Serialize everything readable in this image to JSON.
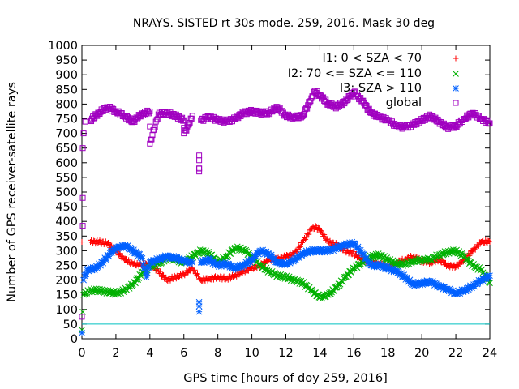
{
  "chart_data": {
    "type": "scatter",
    "title": "NRAYS. SISTED rt 30s mode. 259, 2016. Mask 30 deg",
    "xlabel": "GPS time [hours of doy 259, 2016]",
    "ylabel": "Number of GPS receiver-satellite rays",
    "xlim": [
      0,
      24
    ],
    "ylim": [
      0,
      1000
    ],
    "x_ticks": [
      "0",
      "2",
      "4",
      "6",
      "8",
      "10",
      "12",
      "14",
      "16",
      "18",
      "20",
      "22",
      "24"
    ],
    "y_ticks": [
      "0",
      "50",
      "100",
      "150",
      "200",
      "250",
      "300",
      "350",
      "400",
      "450",
      "500",
      "550",
      "600",
      "650",
      "700",
      "750",
      "800",
      "850",
      "900",
      "950",
      "1000"
    ],
    "reference_line": {
      "y": 50,
      "color": "#00c0c0"
    },
    "legend_position": "top-right",
    "series": [
      {
        "name": "I1: 0 < SZA < 70",
        "marker": "plus",
        "color": "#ff0000",
        "points": [
          [
            0,
            330
          ],
          [
            0.5,
            330
          ],
          [
            1,
            330
          ],
          [
            1.5,
            325
          ],
          [
            2,
            300
          ],
          [
            2.5,
            270
          ],
          [
            3,
            255
          ],
          [
            3.5,
            250
          ],
          [
            4,
            255
          ],
          [
            4.5,
            230
          ],
          [
            5,
            200
          ],
          [
            5.5,
            210
          ],
          [
            6,
            220
          ],
          [
            6.5,
            240
          ],
          [
            7,
            200
          ],
          [
            7.5,
            205
          ],
          [
            8,
            210
          ],
          [
            8.5,
            205
          ],
          [
            9,
            215
          ],
          [
            9.5,
            230
          ],
          [
            10,
            240
          ],
          [
            10.5,
            250
          ],
          [
            11,
            270
          ],
          [
            11.5,
            270
          ],
          [
            12,
            280
          ],
          [
            12.5,
            290
          ],
          [
            13,
            330
          ],
          [
            13.5,
            375
          ],
          [
            13.8,
            380
          ],
          [
            14,
            370
          ],
          [
            14.5,
            330
          ],
          [
            15,
            320
          ],
          [
            15.5,
            300
          ],
          [
            16,
            290
          ],
          [
            16.5,
            270
          ],
          [
            17,
            260
          ],
          [
            17.5,
            255
          ],
          [
            18,
            245
          ],
          [
            18.5,
            260
          ],
          [
            19,
            270
          ],
          [
            19.5,
            280
          ],
          [
            20,
            265
          ],
          [
            20.5,
            260
          ],
          [
            21,
            270
          ],
          [
            21.5,
            250
          ],
          [
            22,
            245
          ],
          [
            22.5,
            270
          ],
          [
            23,
            300
          ],
          [
            23.5,
            330
          ],
          [
            24,
            330
          ]
        ]
      },
      {
        "name": "I2: 70 <= SZA <= 110",
        "marker": "cross",
        "color": "#00b000",
        "points": [
          [
            0,
            30
          ],
          [
            0.1,
            150
          ],
          [
            0.5,
            165
          ],
          [
            1,
            165
          ],
          [
            1.5,
            160
          ],
          [
            2,
            155
          ],
          [
            2.5,
            165
          ],
          [
            3,
            185
          ],
          [
            3.5,
            220
          ],
          [
            4,
            245
          ],
          [
            4.5,
            255
          ],
          [
            5,
            275
          ],
          [
            5.5,
            270
          ],
          [
            6,
            260
          ],
          [
            6.5,
            280
          ],
          [
            7,
            300
          ],
          [
            7.5,
            290
          ],
          [
            8,
            260
          ],
          [
            8.5,
            280
          ],
          [
            9,
            310
          ],
          [
            9.5,
            305
          ],
          [
            10,
            280
          ],
          [
            10.5,
            250
          ],
          [
            11,
            230
          ],
          [
            11.5,
            215
          ],
          [
            12,
            210
          ],
          [
            12.5,
            200
          ],
          [
            13,
            190
          ],
          [
            13.5,
            165
          ],
          [
            14,
            140
          ],
          [
            14.5,
            150
          ],
          [
            15,
            175
          ],
          [
            15.5,
            210
          ],
          [
            16,
            240
          ],
          [
            16.5,
            260
          ],
          [
            17,
            280
          ],
          [
            17.5,
            285
          ],
          [
            18,
            270
          ],
          [
            18.5,
            255
          ],
          [
            19,
            255
          ],
          [
            19.5,
            265
          ],
          [
            20,
            270
          ],
          [
            20.5,
            270
          ],
          [
            21,
            285
          ],
          [
            21.5,
            295
          ],
          [
            22,
            300
          ],
          [
            22.5,
            280
          ],
          [
            23,
            250
          ],
          [
            23.5,
            235
          ],
          [
            24,
            190
          ]
        ]
      },
      {
        "name": "I3: SZA > 110",
        "marker": "star",
        "color": "#0060ff",
        "points": [
          [
            0,
            20
          ],
          [
            0.1,
            200
          ],
          [
            0.3,
            235
          ],
          [
            0.8,
            240
          ],
          [
            1.2,
            260
          ],
          [
            1.8,
            300
          ],
          [
            2.2,
            315
          ],
          [
            2.6,
            315
          ],
          [
            3,
            300
          ],
          [
            3.5,
            280
          ],
          [
            3.8,
            210
          ],
          [
            4,
            260
          ],
          [
            4.5,
            270
          ],
          [
            5,
            280
          ],
          [
            5.5,
            275
          ],
          [
            6,
            265
          ],
          [
            6.5,
            260
          ],
          [
            6.9,
            125
          ],
          [
            6.9,
            92
          ],
          [
            7,
            260
          ],
          [
            7.5,
            270
          ],
          [
            8,
            250
          ],
          [
            8.5,
            255
          ],
          [
            9,
            240
          ],
          [
            9.5,
            250
          ],
          [
            10,
            270
          ],
          [
            10.5,
            300
          ],
          [
            11,
            290
          ],
          [
            11.5,
            260
          ],
          [
            12,
            255
          ],
          [
            12.5,
            270
          ],
          [
            13,
            290
          ],
          [
            13.5,
            300
          ],
          [
            14,
            300
          ],
          [
            14.5,
            300
          ],
          [
            15,
            310
          ],
          [
            15.5,
            320
          ],
          [
            16,
            325
          ],
          [
            16.5,
            290
          ],
          [
            17,
            250
          ],
          [
            17.5,
            250
          ],
          [
            18,
            240
          ],
          [
            18.5,
            230
          ],
          [
            19,
            210
          ],
          [
            19.5,
            185
          ],
          [
            20,
            190
          ],
          [
            20.5,
            195
          ],
          [
            21,
            180
          ],
          [
            21.5,
            170
          ],
          [
            22,
            155
          ],
          [
            22.5,
            165
          ],
          [
            23,
            180
          ],
          [
            23.5,
            200
          ],
          [
            24,
            215
          ]
        ]
      },
      {
        "name": "global",
        "marker": "square",
        "color": "#a000c0",
        "points": [
          [
            0,
            75
          ],
          [
            0.05,
            385
          ],
          [
            0.05,
            480
          ],
          [
            0.05,
            650
          ],
          [
            0.1,
            700
          ],
          [
            0.2,
            740
          ],
          [
            0.5,
            745
          ],
          [
            1,
            770
          ],
          [
            1.5,
            790
          ],
          [
            2,
            775
          ],
          [
            2.5,
            760
          ],
          [
            3,
            740
          ],
          [
            3.5,
            765
          ],
          [
            4,
            775
          ],
          [
            4.5,
            765
          ],
          [
            5,
            770
          ],
          [
            5.5,
            760
          ],
          [
            6,
            745
          ],
          [
            6.3,
            730
          ],
          [
            6.5,
            760
          ],
          [
            6.9,
            625
          ],
          [
            6.9,
            580
          ],
          [
            6.9,
            570
          ],
          [
            7,
            745
          ],
          [
            7.5,
            755
          ],
          [
            8,
            745
          ],
          [
            8.5,
            740
          ],
          [
            9,
            750
          ],
          [
            9.5,
            770
          ],
          [
            10,
            775
          ],
          [
            10.5,
            770
          ],
          [
            11,
            770
          ],
          [
            11.5,
            790
          ],
          [
            12,
            760
          ],
          [
            12.5,
            755
          ],
          [
            13,
            760
          ],
          [
            13.5,
            820
          ],
          [
            13.7,
            845
          ],
          [
            14,
            830
          ],
          [
            14.5,
            800
          ],
          [
            15,
            790
          ],
          [
            15.5,
            810
          ],
          [
            16,
            840
          ],
          [
            16.5,
            810
          ],
          [
            17,
            770
          ],
          [
            17.5,
            755
          ],
          [
            18,
            745
          ],
          [
            18.5,
            725
          ],
          [
            19,
            720
          ],
          [
            19.5,
            730
          ],
          [
            20,
            745
          ],
          [
            20.5,
            760
          ],
          [
            21,
            740
          ],
          [
            21.5,
            720
          ],
          [
            22,
            725
          ],
          [
            22.5,
            750
          ],
          [
            23,
            770
          ],
          [
            23.5,
            750
          ],
          [
            24,
            735
          ],
          [
            4,
            665
          ],
          [
            6,
            700
          ]
        ]
      }
    ]
  }
}
